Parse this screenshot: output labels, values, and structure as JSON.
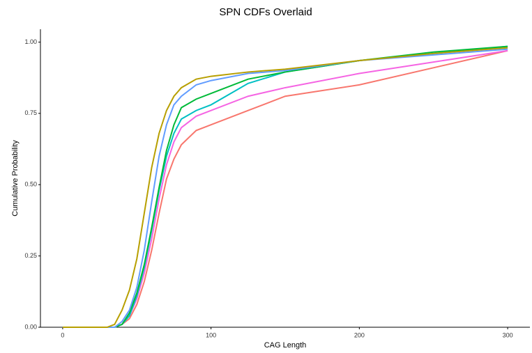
{
  "chart_data": {
    "type": "line",
    "title": "SPN CDFs Overlaid",
    "x_label": "CAG Length",
    "y_label": "Cumulative Probability",
    "x": [
      0,
      30,
      35,
      40,
      45,
      50,
      55,
      60,
      65,
      70,
      75,
      80,
      90,
      100,
      125,
      150,
      200,
      250,
      300
    ],
    "series": [
      {
        "color": "#f8766d",
        "values": [
          0,
          0,
          0,
          0.01,
          0.03,
          0.08,
          0.16,
          0.27,
          0.4,
          0.52,
          0.59,
          0.64,
          0.69,
          0.71,
          0.76,
          0.81,
          0.85,
          0.91,
          0.97
        ]
      },
      {
        "color": "#f564e3",
        "values": [
          0,
          0,
          0,
          0.01,
          0.04,
          0.1,
          0.19,
          0.31,
          0.45,
          0.57,
          0.65,
          0.7,
          0.74,
          0.76,
          0.81,
          0.84,
          0.89,
          0.93,
          0.97
        ]
      },
      {
        "color": "#00bfc4",
        "values": [
          0,
          0,
          0,
          0.01,
          0.04,
          0.11,
          0.21,
          0.34,
          0.48,
          0.6,
          0.68,
          0.73,
          0.76,
          0.78,
          0.855,
          0.895,
          0.935,
          0.96,
          0.985
        ]
      },
      {
        "color": "#00ba38",
        "values": [
          0,
          0,
          0,
          0.01,
          0.05,
          0.12,
          0.22,
          0.35,
          0.49,
          0.62,
          0.71,
          0.77,
          0.8,
          0.82,
          0.87,
          0.895,
          0.935,
          0.965,
          0.985
        ]
      },
      {
        "color": "#619cff",
        "values": [
          0,
          0,
          0,
          0.02,
          0.06,
          0.14,
          0.27,
          0.44,
          0.6,
          0.71,
          0.78,
          0.81,
          0.85,
          0.865,
          0.89,
          0.9,
          0.935,
          0.955,
          0.975
        ]
      },
      {
        "color": "#b79f00",
        "values": [
          0,
          0,
          0.01,
          0.06,
          0.13,
          0.24,
          0.4,
          0.56,
          0.68,
          0.76,
          0.81,
          0.84,
          0.87,
          0.88,
          0.895,
          0.905,
          0.935,
          0.96,
          0.98
        ]
      }
    ],
    "xlim": [
      -15,
      315
    ],
    "xticks": [
      0,
      100,
      200,
      300
    ],
    "ylim": [
      0,
      1.045
    ],
    "yticks": [
      {
        "value": 0,
        "label": "0.00"
      },
      {
        "value": 0.25,
        "label": "0.25"
      },
      {
        "value": 0.5,
        "label": "0.50"
      },
      {
        "value": 0.75,
        "label": "0.75"
      },
      {
        "value": 1,
        "label": "1.00"
      }
    ],
    "grid": false
  }
}
